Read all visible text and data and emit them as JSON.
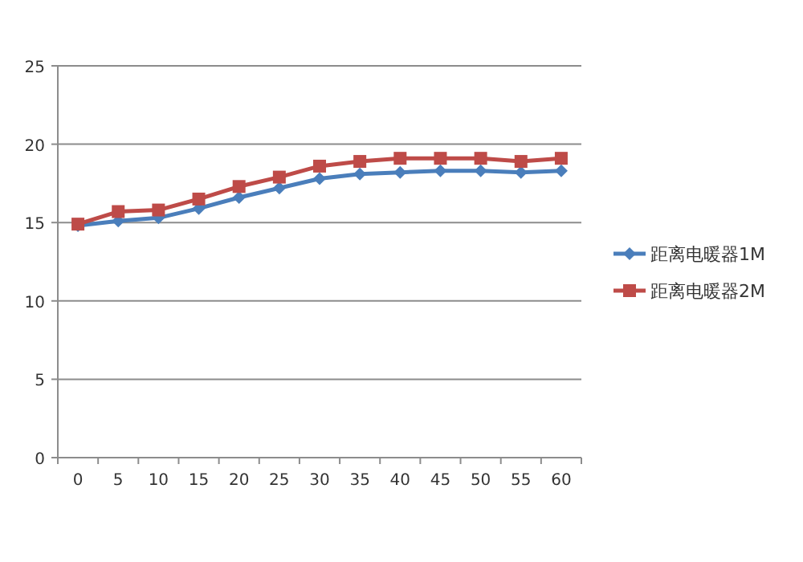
{
  "chart_data": {
    "type": "line",
    "categories": [
      "0",
      "5",
      "10",
      "15",
      "20",
      "25",
      "30",
      "35",
      "40",
      "45",
      "50",
      "55",
      "60"
    ],
    "series": [
      {
        "name": "距离电暖器1M",
        "color": "#4a7ebb",
        "marker": "diamond",
        "values": [
          14.8,
          15.1,
          15.3,
          15.9,
          16.6,
          17.2,
          17.8,
          18.1,
          18.2,
          18.3,
          18.3,
          18.2,
          18.3
        ]
      },
      {
        "name": "距离电暖器2M",
        "color": "#be4b48",
        "marker": "square",
        "values": [
          14.9,
          15.7,
          15.8,
          16.5,
          17.3,
          17.9,
          18.6,
          18.9,
          19.1,
          19.1,
          19.1,
          18.9,
          19.1
        ]
      }
    ],
    "ylim": [
      0,
      25
    ],
    "yticks": [
      0,
      5,
      10,
      15,
      20,
      25
    ],
    "grid": "y",
    "legend": "right"
  }
}
